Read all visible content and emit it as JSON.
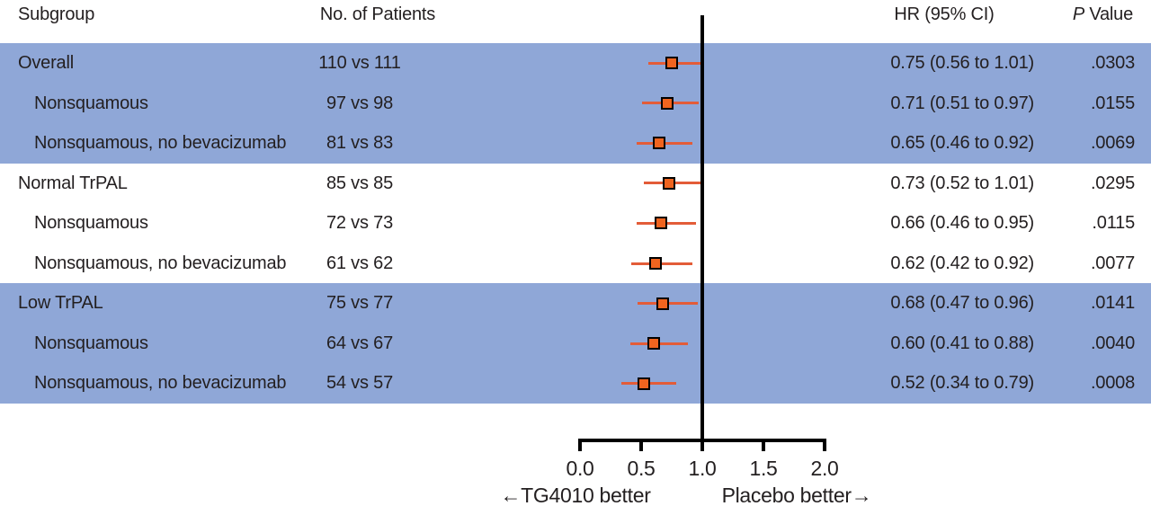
{
  "header": {
    "subgroup": "Subgroup",
    "patients": "No. of Patients",
    "hr_ci": "HR (95% CI)",
    "p_italic": "P",
    "p_rest": " Value"
  },
  "axis": {
    "ticks": [
      "0.0",
      "0.5",
      "1.0",
      "1.5",
      "2.0"
    ],
    "left_label": "←TG4010 better",
    "right_label": "Placebo better→"
  },
  "colors": {
    "band_blue": "#8FA7D7",
    "row_white": "#FFFFFF",
    "ci_line": "#E35C38",
    "marker_fill": "#F0641F",
    "marker_border": "#000000",
    "axis_black": "#000000",
    "text": "#231F20"
  },
  "chart_data": {
    "type": "forest",
    "x_axis": {
      "min": 0.0,
      "max": 2.0,
      "tick_values": [
        0.0,
        0.5,
        1.0,
        1.5,
        2.0
      ],
      "reference_line": 1.0
    },
    "xlabel_left": "←TG4010 better",
    "xlabel_right": "Placebo better→",
    "columns": [
      "Subgroup",
      "No. of Patients",
      "HR (95% CI)",
      "P Value"
    ],
    "rows": [
      {
        "subgroup": "Overall",
        "indent": 0,
        "patients": "110 vs 111",
        "hr": 0.75,
        "ci_low": 0.56,
        "ci_high": 1.01,
        "hr_ci_text": "0.75 (0.56 to 1.01)",
        "p_value": ".0303",
        "band": "blue"
      },
      {
        "subgroup": "Nonsquamous",
        "indent": 1,
        "patients": "97 vs 98",
        "hr": 0.71,
        "ci_low": 0.51,
        "ci_high": 0.97,
        "hr_ci_text": "0.71 (0.51 to 0.97)",
        "p_value": ".0155",
        "band": "blue"
      },
      {
        "subgroup": "Nonsquamous, no bevacizumab",
        "indent": 1,
        "patients": "81 vs 83",
        "hr": 0.65,
        "ci_low": 0.46,
        "ci_high": 0.92,
        "hr_ci_text": "0.65 (0.46 to 0.92)",
        "p_value": ".0069",
        "band": "blue"
      },
      {
        "subgroup": "Normal TrPAL",
        "indent": 0,
        "patients": "85 vs 85",
        "hr": 0.73,
        "ci_low": 0.52,
        "ci_high": 1.01,
        "hr_ci_text": "0.73 (0.52 to 1.01)",
        "p_value": ".0295",
        "band": "white"
      },
      {
        "subgroup": "Nonsquamous",
        "indent": 1,
        "patients": "72 vs 73",
        "hr": 0.66,
        "ci_low": 0.46,
        "ci_high": 0.95,
        "hr_ci_text": "0.66 (0.46 to 0.95)",
        "p_value": ".0115",
        "band": "white"
      },
      {
        "subgroup": "Nonsquamous, no bevacizumab",
        "indent": 1,
        "patients": "61 vs 62",
        "hr": 0.62,
        "ci_low": 0.42,
        "ci_high": 0.92,
        "hr_ci_text": "0.62 (0.42 to 0.92)",
        "p_value": ".0077",
        "band": "white"
      },
      {
        "subgroup": "Low TrPAL",
        "indent": 0,
        "patients": "75 vs 77",
        "hr": 0.68,
        "ci_low": 0.47,
        "ci_high": 0.96,
        "hr_ci_text": "0.68 (0.47 to 0.96)",
        "p_value": ".0141",
        "band": "blue"
      },
      {
        "subgroup": "Nonsquamous",
        "indent": 1,
        "patients": "64 vs 67",
        "hr": 0.6,
        "ci_low": 0.41,
        "ci_high": 0.88,
        "hr_ci_text": "0.60 (0.41 to 0.88)",
        "p_value": ".0040",
        "band": "blue"
      },
      {
        "subgroup": "Nonsquamous, no bevacizumab",
        "indent": 1,
        "patients": "54 vs 57",
        "hr": 0.52,
        "ci_low": 0.34,
        "ci_high": 0.79,
        "hr_ci_text": "0.52 (0.34 to 0.79)",
        "p_value": ".0008",
        "band": "blue"
      }
    ]
  }
}
